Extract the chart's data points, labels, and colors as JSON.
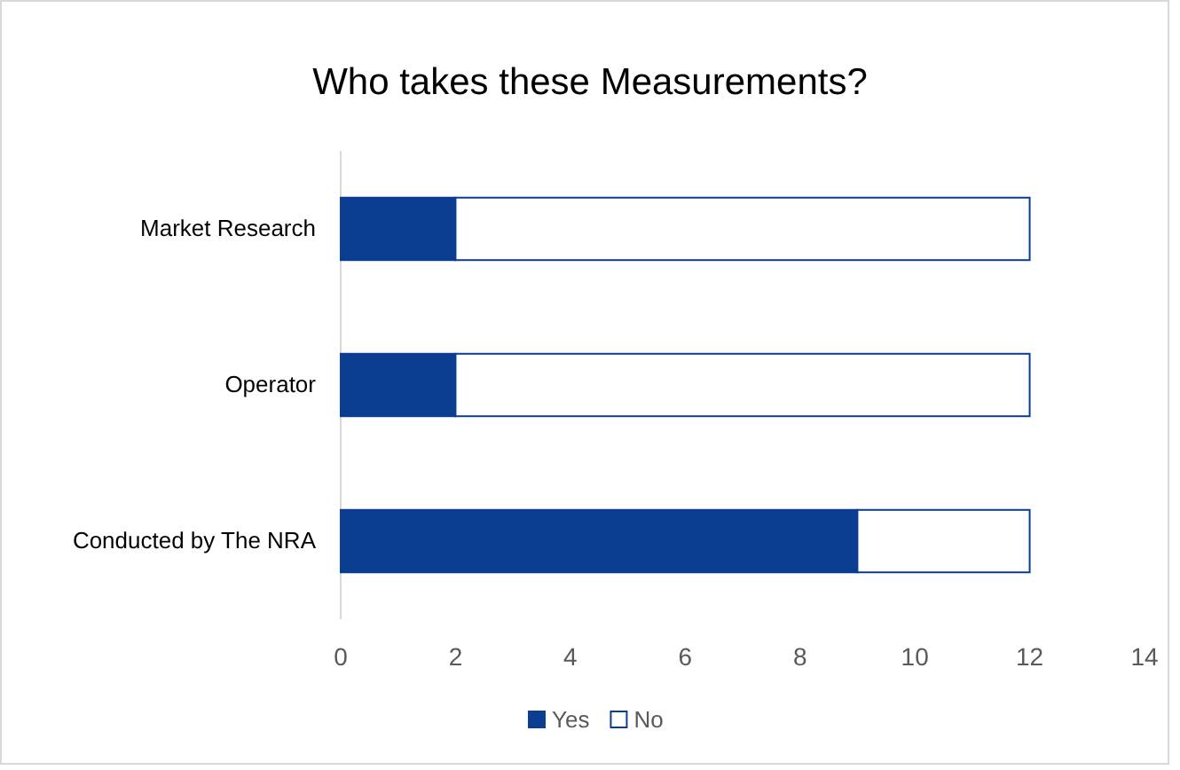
{
  "chart_data": {
    "type": "bar",
    "title": "Who takes these Measurements?",
    "orientation": "horizontal",
    "stacked": true,
    "categories": [
      "Market Research",
      "Operator",
      "Conducted by The NRA"
    ],
    "series": [
      {
        "name": "Yes",
        "color": "#0b3d91",
        "values": [
          2,
          2,
          9
        ]
      },
      {
        "name": "No",
        "color": "#ffffff",
        "values": [
          10,
          10,
          3
        ]
      }
    ],
    "xlim": [
      0,
      14
    ],
    "xticks": [
      0,
      2,
      4,
      6,
      8,
      10,
      12,
      14
    ],
    "grid": false,
    "legend": "bottom"
  }
}
